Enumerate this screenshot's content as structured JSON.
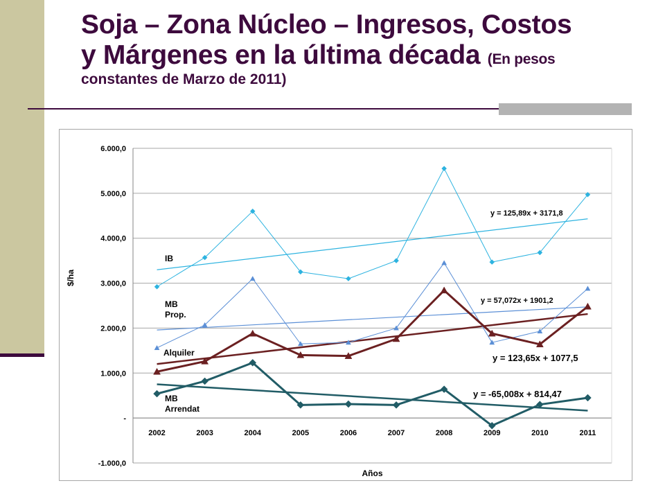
{
  "title": {
    "line1": "Soja – Zona Núcleo – Ingresos, Costos",
    "line2": "y Márgenes en la última década",
    "subtitle_part1": "(En pesos",
    "subtitle_part2": "constantes de Marzo de 2011)"
  },
  "colors": {
    "title": "#3d0a3d",
    "ib": "#2db3e0",
    "mb_prop": "#5b8fd6",
    "alquiler": "#6b2021",
    "mb_arrendat": "#215c66"
  },
  "chart_data": {
    "type": "line",
    "categories": [
      "2002",
      "2003",
      "2004",
      "2005",
      "2006",
      "2007",
      "2008",
      "2009",
      "2010",
      "2011"
    ],
    "xlabel": "Años",
    "ylabel": "$/ha",
    "ylim": [
      -1000,
      6000
    ],
    "yticks": [
      {
        "value": 6000,
        "label": "6.000,0"
      },
      {
        "value": 5000,
        "label": "5.000,0"
      },
      {
        "value": 4000,
        "label": "4.000,0"
      },
      {
        "value": 3000,
        "label": "3.000,0"
      },
      {
        "value": 2000,
        "label": "2.000,0"
      },
      {
        "value": 1000,
        "label": "1.000,0"
      },
      {
        "value": 0,
        "label": "-"
      },
      {
        "value": -1000,
        "label": "-1.000,0"
      }
    ],
    "grid": true,
    "series": [
      {
        "name": "IB",
        "label_lines": [
          "IB"
        ],
        "color": "#2db3e0",
        "marker": "diamond",
        "weight": "thin",
        "values": [
          2920,
          3570,
          4600,
          3250,
          3100,
          3500,
          5550,
          3470,
          3680,
          4970
        ],
        "trend": {
          "slope": 125.89,
          "intercept": 3171.8,
          "equation": "y = 125,89x + 3171,8"
        }
      },
      {
        "name": "MB Prop.",
        "label_lines": [
          "MB",
          "Prop."
        ],
        "color": "#5b8fd6",
        "marker": "triangle",
        "weight": "thin",
        "values": [
          1560,
          2070,
          3100,
          1650,
          1680,
          2000,
          3450,
          1680,
          1930,
          2880
        ],
        "trend": {
          "slope": 57.072,
          "intercept": 1901.2,
          "equation": "y = 57,072x + 1901,2"
        }
      },
      {
        "name": "Alquiler",
        "label_lines": [
          "Alquiler"
        ],
        "color": "#6b2021",
        "marker": "triangle",
        "weight": "thick",
        "values": [
          1030,
          1260,
          1880,
          1400,
          1380,
          1760,
          2840,
          1880,
          1640,
          2480
        ],
        "trend": {
          "slope": 123.65,
          "intercept": 1077.5,
          "equation": "y = 123,65x + 1077,5"
        }
      },
      {
        "name": "MB Arrendat",
        "label_lines": [
          "MB",
          "Arrendat"
        ],
        "color": "#215c66",
        "marker": "diamond",
        "weight": "thick",
        "values": [
          540,
          820,
          1230,
          290,
          310,
          290,
          640,
          -170,
          300,
          450
        ],
        "trend": {
          "slope": -65.008,
          "intercept": 814.47,
          "equation": "y = -65,008x + 814,47"
        }
      }
    ]
  }
}
